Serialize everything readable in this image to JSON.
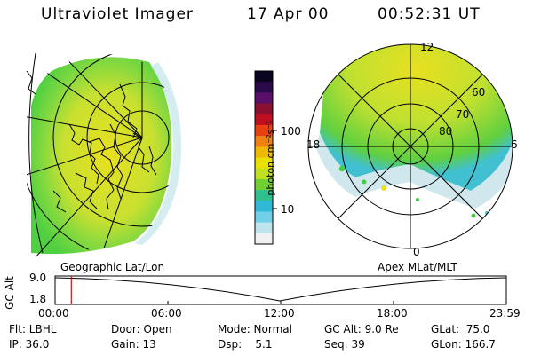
{
  "header": {
    "title": "Ultraviolet Imager",
    "date": "17 Apr 00",
    "time": "00:52:31 UT"
  },
  "colorbar": {
    "label": "photon cm⁻²s⁻¹",
    "ticks": [
      "100",
      "10"
    ],
    "colors": [
      "#0a0520",
      "#2a0a4a",
      "#5a0f6a",
      "#8a1030",
      "#c01020",
      "#e84010",
      "#f08010",
      "#f0b800",
      "#e8e000",
      "#c0e020",
      "#70d030",
      "#30c090",
      "#30b8d8",
      "#70d0e8",
      "#c0e4ee",
      "#f0f0f0"
    ]
  },
  "left_map": {
    "label": "Geographic Lat/Lon"
  },
  "right_map": {
    "label": "Apex MLat/MLT",
    "mlt_labels": {
      "top": "12",
      "left": "18",
      "right": "6",
      "bottom": "0"
    },
    "lat_labels": [
      "60",
      "70",
      "80"
    ]
  },
  "timeline": {
    "axis_label": "GC Alt",
    "y_top": "9.0",
    "y_bottom": "1.8",
    "x_ticks": [
      "00:00",
      "06:00",
      "12:00",
      "18:00",
      "23:59"
    ],
    "cursor_time_fraction": 0.036
  },
  "info": {
    "row1": [
      {
        "key": "flt",
        "text": "Flt: LBHL"
      },
      {
        "key": "door",
        "text": "Door: Open"
      },
      {
        "key": "mode",
        "text": "Mode: Normal"
      },
      {
        "key": "gcalt",
        "text": "GC Alt: 9.0 Re"
      },
      {
        "key": "glat",
        "text": "GLat:  75.0"
      }
    ],
    "row2": [
      {
        "key": "ip",
        "text": "IP: 36.0"
      },
      {
        "key": "gain",
        "text": "Gain: 13"
      },
      {
        "key": "dsp",
        "text": "Dsp:    5.1"
      },
      {
        "key": "seq",
        "text": "Seq: 39"
      },
      {
        "key": "glon",
        "text": "GLon: 166.7"
      }
    ]
  },
  "colors": {
    "aurora_green": "#50d040",
    "aurora_yellow": "#e8e020",
    "aurora_cyan": "#40c0d0",
    "cursor_red": "#d01010"
  }
}
